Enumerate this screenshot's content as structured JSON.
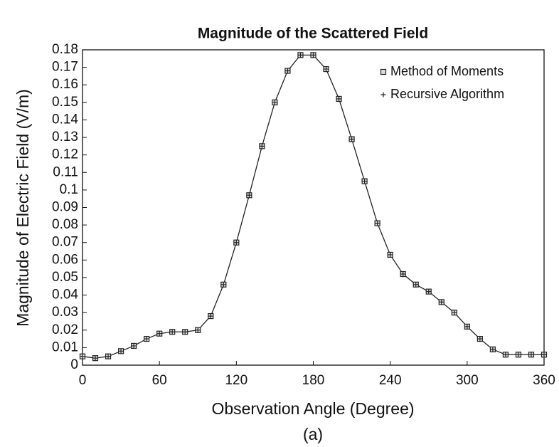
{
  "chart_data": {
    "type": "line",
    "title": "Magnitude of the Scattered Field",
    "xlabel": "Observation Angle (Degree)",
    "ylabel": "Magnitude of Electric Field (V/m)",
    "caption": "(a)",
    "x": [
      0,
      10,
      20,
      30,
      40,
      50,
      60,
      70,
      80,
      90,
      100,
      110,
      120,
      130,
      140,
      150,
      160,
      170,
      180,
      190,
      200,
      210,
      220,
      230,
      240,
      250,
      260,
      270,
      280,
      290,
      300,
      310,
      320,
      330,
      340,
      350,
      360
    ],
    "series": [
      {
        "name": "Method of Moments",
        "color": "#222222",
        "marker": "square",
        "values": [
          0.005,
          0.004,
          0.005,
          0.008,
          0.011,
          0.015,
          0.018,
          0.019,
          0.019,
          0.02,
          0.028,
          0.046,
          0.07,
          0.097,
          0.125,
          0.15,
          0.168,
          0.177,
          0.177,
          0.169,
          0.152,
          0.129,
          0.105,
          0.081,
          0.063,
          0.052,
          0.046,
          0.042,
          0.036,
          0.03,
          0.022,
          0.015,
          0.009,
          0.006,
          0.006,
          0.006,
          0.006
        ]
      },
      {
        "name": "Recursive Algorithm",
        "color": "#222222",
        "marker": "plus",
        "values": [
          0.005,
          0.004,
          0.005,
          0.008,
          0.011,
          0.015,
          0.018,
          0.019,
          0.019,
          0.02,
          0.028,
          0.046,
          0.07,
          0.097,
          0.125,
          0.15,
          0.168,
          0.177,
          0.177,
          0.169,
          0.152,
          0.129,
          0.105,
          0.081,
          0.063,
          0.052,
          0.046,
          0.042,
          0.036,
          0.03,
          0.022,
          0.015,
          0.009,
          0.006,
          0.006,
          0.006,
          0.006
        ]
      }
    ],
    "xlim": [
      0,
      360
    ],
    "xticks": [
      0,
      60,
      120,
      180,
      240,
      300,
      360
    ],
    "ylim": [
      0,
      0.18
    ],
    "yticks": [
      0,
      0.01,
      0.02,
      0.03,
      0.04,
      0.05,
      0.06,
      0.07,
      0.08,
      0.09,
      0.1,
      0.11,
      0.12,
      0.13,
      0.14,
      0.15,
      0.16,
      0.17,
      0.18
    ],
    "legend": "upper right"
  }
}
